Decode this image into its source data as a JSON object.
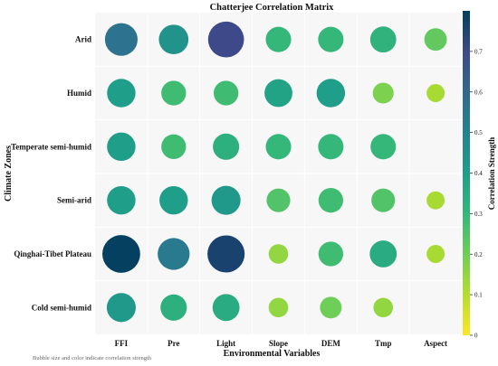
{
  "chart_data": {
    "type": "scatter",
    "title": "Chatterjee Correlation Matrix",
    "xlabel": "Environmental Variables",
    "ylabel": "Climate Zones",
    "x_categories": [
      "FFI",
      "Pre",
      "Light",
      "Slope",
      "DEM",
      "Tmp",
      "Aspect"
    ],
    "y_categories": [
      "Arid",
      "Humid",
      "Temperate semi-humid",
      "Semi-arid",
      "Qinghai-Tibet Plateau",
      "Cold semi-humid"
    ],
    "values": [
      [
        0.56,
        0.44,
        0.7,
        0.3,
        0.3,
        0.32,
        0.22
      ],
      [
        0.4,
        0.28,
        0.28,
        0.38,
        0.4,
        0.18,
        0.12
      ],
      [
        0.4,
        0.28,
        0.33,
        0.3,
        0.3,
        0.3,
        null
      ],
      [
        0.4,
        0.4,
        0.42,
        0.25,
        0.28,
        0.25,
        0.12
      ],
      [
        0.79,
        0.53,
        0.76,
        0.15,
        0.28,
        0.35,
        0.12
      ],
      [
        0.42,
        0.33,
        0.35,
        0.15,
        0.2,
        0.15,
        null
      ]
    ],
    "colorbar": {
      "label": "Correlation Strength",
      "range": [
        0,
        0.8
      ],
      "ticks": [
        "0",
        "0.1",
        "0.2",
        "0.3",
        "0.4",
        "0.5",
        "0.6",
        "0.7"
      ],
      "colormap": [
        "#fde725",
        "#b5de2b",
        "#6ece58",
        "#35b779",
        "#1f9e89",
        "#26828e",
        "#31688e",
        "#3e4989",
        "#003f5c"
      ]
    },
    "grid": true,
    "note": "Bubble size and color indicate correlation strength"
  }
}
